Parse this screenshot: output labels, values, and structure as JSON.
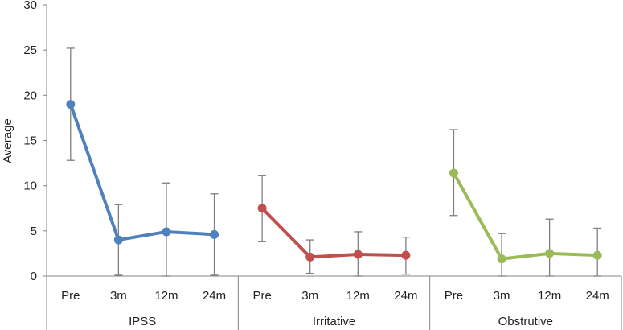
{
  "chart_data": {
    "type": "line",
    "ylabel": "Average",
    "ylim": [
      0,
      30
    ],
    "yticks": [
      0,
      5,
      10,
      15,
      20,
      25,
      30
    ],
    "grid": false,
    "legend": "none",
    "groups": [
      {
        "name": "IPSS",
        "color": "#4f81bd",
        "categories": [
          "Pre",
          "3m",
          "12m",
          "24m"
        ],
        "values": [
          19.0,
          4.0,
          4.9,
          4.6
        ],
        "error_high": [
          25.2,
          7.9,
          10.3,
          9.1
        ],
        "error_low": [
          12.8,
          0.1,
          0.0,
          0.1
        ]
      },
      {
        "name": "Irritative",
        "color": "#c0504d",
        "categories": [
          "Pre",
          "3m",
          "12m",
          "24m"
        ],
        "values": [
          7.5,
          2.1,
          2.4,
          2.3
        ],
        "error_high": [
          11.1,
          4.0,
          4.9,
          4.3
        ],
        "error_low": [
          3.8,
          0.3,
          0.0,
          0.2
        ]
      },
      {
        "name": "Obstrutive",
        "color": "#9bbb59",
        "categories": [
          "Pre",
          "3m",
          "12m",
          "24m"
        ],
        "values": [
          11.4,
          1.9,
          2.5,
          2.3
        ],
        "error_high": [
          16.2,
          4.7,
          6.3,
          5.3
        ],
        "error_low": [
          6.7,
          0.0,
          0.0,
          0.0
        ]
      }
    ]
  }
}
